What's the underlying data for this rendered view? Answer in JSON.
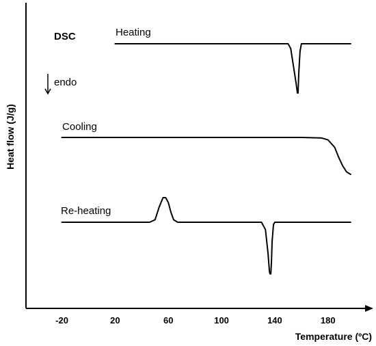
{
  "chart_data": {
    "type": "line",
    "title": "DSC",
    "xlabel": "Temperature (ºC)",
    "ylabel": "Heat flow (J/g)",
    "direction_label": "endo",
    "xlim": [
      -47,
      213
    ],
    "x_ticks": [
      "-20",
      "20",
      "60",
      "100",
      "140",
      "180"
    ],
    "x_tick_values": [
      -20,
      20,
      60,
      100,
      140,
      180
    ],
    "y_axis_ticks": false,
    "grid": false,
    "legend": "none",
    "series": [
      {
        "name": "Heating",
        "x": [
          20,
          150,
          152,
          154,
          156,
          157,
          157.5,
          158,
          159,
          160,
          162,
          165,
          197
        ],
        "y": [
          0,
          0,
          -0.2,
          -0.9,
          -1.6,
          -2.0,
          -2.0,
          -1.2,
          -0.3,
          0,
          0,
          0,
          0
        ]
      },
      {
        "name": "Cooling",
        "x": [
          -20,
          160,
          175,
          180,
          185,
          188,
          191,
          194,
          197
        ],
        "y": [
          0,
          0,
          -0.02,
          -0.1,
          -0.4,
          -0.8,
          -1.15,
          -1.4,
          -1.5
        ]
      },
      {
        "name": "Re-heating",
        "x": [
          -20,
          46,
          50,
          53,
          56,
          58,
          60,
          62,
          64,
          67,
          130,
          133,
          135,
          136,
          136.5,
          137,
          137.5,
          138,
          139,
          140,
          197
        ],
        "y": [
          0,
          0,
          0.1,
          0.6,
          1.0,
          1.0,
          0.8,
          0.4,
          0.1,
          0,
          0,
          -0.3,
          -1.3,
          -2.0,
          -2.1,
          -2.1,
          -1.6,
          -0.8,
          -0.1,
          0,
          0
        ]
      }
    ]
  }
}
